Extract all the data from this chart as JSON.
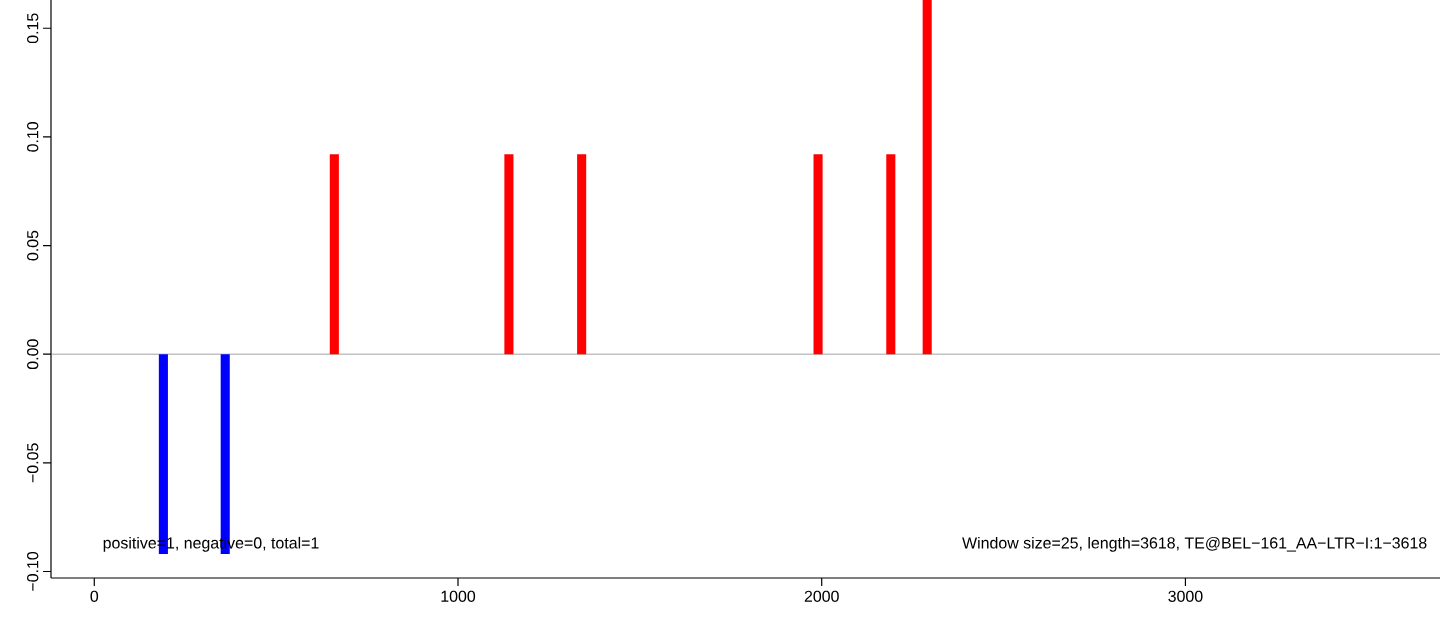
{
  "chart_data": {
    "type": "bar",
    "x": [
      190,
      360,
      660,
      1140,
      1340,
      1990,
      2190,
      2290
    ],
    "values": [
      -0.092,
      -0.092,
      0.092,
      0.092,
      0.092,
      0.092,
      0.092,
      0.163
    ],
    "colors": [
      "#0000ff",
      "#0000ff",
      "#ff0000",
      "#ff0000",
      "#ff0000",
      "#ff0000",
      "#ff0000",
      "#ff0000"
    ],
    "xlim": [
      -119,
      3700
    ],
    "ylim": [
      -0.103,
      0.163
    ],
    "xticks": [
      0,
      1000,
      2000,
      3000
    ],
    "yticks": [
      {
        "value": -0.1,
        "label": "−0.10"
      },
      {
        "value": -0.05,
        "label": "−0.05"
      },
      {
        "value": 0,
        "label": "0.00"
      },
      {
        "value": 0.05,
        "label": "0.05"
      },
      {
        "value": 0.1,
        "label": "0.10"
      },
      {
        "value": 0.15,
        "label": "0.15"
      }
    ],
    "ref_lines": [
      {
        "axis": "y",
        "value": 0,
        "color": "#666666"
      }
    ],
    "annotations": [
      "positive=1, negative=0, total=1",
      "Window size=25, length=3618, TE@BEL−161_AA−LTR−I:1−3618"
    ]
  }
}
